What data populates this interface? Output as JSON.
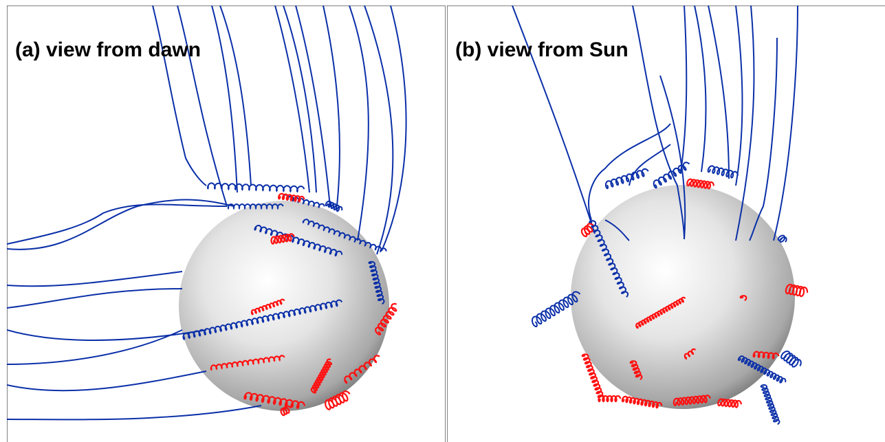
{
  "panels": [
    {
      "label": "(a) view from dawn"
    },
    {
      "label": "(b) view from Sun"
    }
  ]
}
